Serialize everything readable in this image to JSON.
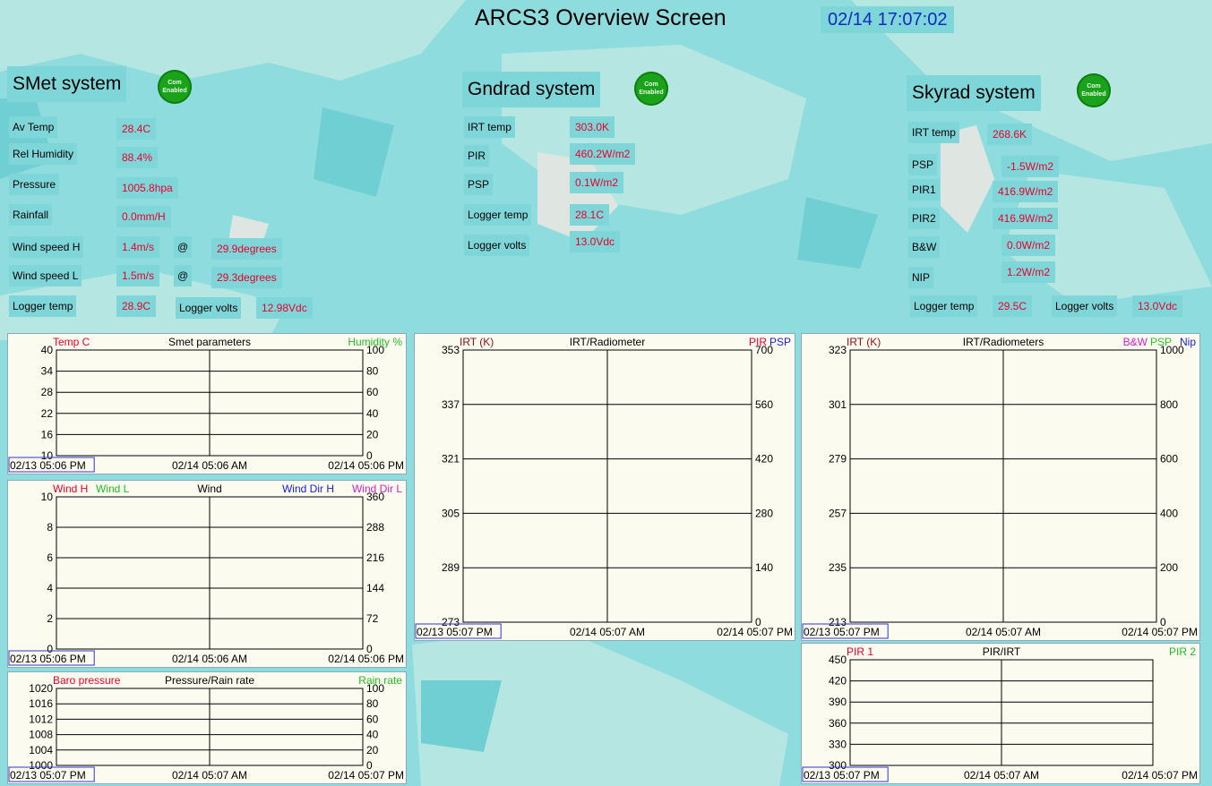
{
  "header": {
    "title": "ARCS3 Overview Screen",
    "datetime": "02/14 17:07:02"
  },
  "colors": {
    "background": "#8fdcde",
    "label_box": "#7fd6d9",
    "value_text": "#e8002a",
    "clock_text": "#1029c0",
    "com_badge": "#1aa31a"
  },
  "com_badge": {
    "line1": "Com",
    "line2": "Enabled",
    "icon": "com-enabled-icon"
  },
  "smet": {
    "title": "SMet system",
    "rows": [
      {
        "label": "Av Temp",
        "value": "28.4C"
      },
      {
        "label": "Rel Humidity",
        "value": "88.4%"
      },
      {
        "label": "Pressure",
        "value": "1005.8hpa"
      },
      {
        "label": "Rainfall",
        "value": "0.0mm/H"
      }
    ],
    "wind": [
      {
        "label": "Wind speed H",
        "value": "1.4m/s",
        "at": "@",
        "dir": "29.9degrees"
      },
      {
        "label": "Wind speed L",
        "value": "1.5m/s",
        "at": "@",
        "dir": "29.3degrees"
      }
    ],
    "logger_temp_label": "Logger temp",
    "logger_temp": "28.9C",
    "logger_volts_label": "Logger volts",
    "logger_volts": "12.98Vdc"
  },
  "gndrad": {
    "title": "Gndrad system",
    "rows": [
      {
        "label": "IRT temp",
        "value": "303.0K"
      },
      {
        "label": "PIR",
        "value": "460.2W/m2"
      },
      {
        "label": "PSP",
        "value": "0.1W/m2"
      },
      {
        "label": "Logger temp",
        "value": "28.1C"
      },
      {
        "label": "Logger volts",
        "value": "13.0Vdc"
      }
    ]
  },
  "skyrad": {
    "title": "Skyrad system",
    "rows": [
      {
        "label": "IRT temp",
        "value": "268.6K"
      },
      {
        "label": "PSP",
        "value": "-1.5W/m2"
      },
      {
        "label": "PIR1",
        "value": "416.9W/m2"
      },
      {
        "label": "PIR2",
        "value": "416.9W/m2"
      },
      {
        "label": "B&W",
        "value": "0.0W/m2"
      },
      {
        "label": "NIP",
        "value": "1.2W/m2"
      }
    ],
    "logger_temp_label": "Logger temp",
    "logger_temp": "29.5C",
    "logger_volts_label": "Logger volts",
    "logger_volts": "13.0Vdc"
  },
  "charts": [
    {
      "id": "smet",
      "title": "Smet parameters",
      "left_legend": [
        {
          "text": "Temp C",
          "color": "#e8002a"
        }
      ],
      "right_legend": [
        {
          "text": "Humidity %",
          "color": "#22bb22"
        }
      ],
      "y_left": [
        "40",
        "34",
        "28",
        "22",
        "16",
        "10"
      ],
      "y_right": [
        "100",
        "80",
        "60",
        "40",
        "20",
        "0"
      ],
      "x_labels": [
        "02/13 05:06 PM",
        "02/14 05:06 AM",
        "02/14 05:06 PM"
      ]
    },
    {
      "id": "wind",
      "title": "Wind",
      "left_legend": [
        {
          "text": "Wind H",
          "color": "#e8002a"
        },
        {
          "text": "Wind L",
          "color": "#22bb22"
        }
      ],
      "right_legend": [
        {
          "text": "Wind Dir H",
          "color": "#1a1ad8"
        },
        {
          "text": "Wind Dir L",
          "color": "#cc22cc"
        }
      ],
      "y_left": [
        "10",
        "8",
        "6",
        "4",
        "2",
        "0"
      ],
      "y_right": [
        "360",
        "288",
        "216",
        "144",
        "72",
        "0"
      ],
      "x_labels": [
        "02/13 05:06 PM",
        "02/14 05:06 AM",
        "02/14 05:06 PM"
      ]
    },
    {
      "id": "pressure",
      "title": "Pressure/Rain rate",
      "left_legend": [
        {
          "text": "Baro pressure",
          "color": "#e8002a"
        }
      ],
      "right_legend": [
        {
          "text": "Rain rate",
          "color": "#22bb22"
        }
      ],
      "y_left": [
        "1020",
        "1016",
        "1012",
        "1008",
        "1004",
        "1000"
      ],
      "y_right": [
        "100",
        "80",
        "60",
        "40",
        "20",
        "0"
      ],
      "x_labels": [
        "02/13 05:07 PM",
        "02/14 05:07 AM",
        "02/14 05:07 PM"
      ]
    },
    {
      "id": "gnd",
      "title": "IRT/Radiometer",
      "left_legend": [
        {
          "text": "IRT (K)",
          "color": "#8b1010"
        }
      ],
      "right_legend": [
        {
          "text": "PIR",
          "color": "#e8002a"
        },
        {
          "text": "PSP",
          "color": "#1a1ad8"
        }
      ],
      "y_left": [
        "353",
        "337",
        "321",
        "305",
        "289",
        "273"
      ],
      "y_right": [
        "700",
        "560",
        "420",
        "280",
        "140",
        "0"
      ],
      "x_labels": [
        "02/13 05:07 PM",
        "02/14 05:07 AM",
        "02/14 05:07 PM"
      ]
    },
    {
      "id": "sky",
      "title": "IRT/Radiometers",
      "left_legend": [
        {
          "text": "IRT (K)",
          "color": "#8b1010"
        }
      ],
      "right_legend": [
        {
          "text": "B&W",
          "color": "#cc22cc"
        },
        {
          "text": "PSP",
          "color": "#22cc22"
        },
        {
          "text": "Nip",
          "color": "#1a1ad8"
        }
      ],
      "y_left": [
        "323",
        "301",
        "279",
        "257",
        "235",
        "213"
      ],
      "y_right": [
        "1000",
        "800",
        "600",
        "400",
        "200",
        "0"
      ],
      "x_labels": [
        "02/13 05:07 PM",
        "02/14 05:07 AM",
        "02/14 05:07 PM"
      ]
    },
    {
      "id": "pir",
      "title": "PIR/IRT",
      "left_legend": [
        {
          "text": "PIR 1",
          "color": "#e8002a"
        }
      ],
      "right_legend": [
        {
          "text": "PIR 2",
          "color": "#22bb22"
        }
      ],
      "y_left": [
        "450",
        "420",
        "390",
        "360",
        "330",
        "300"
      ],
      "y_right": [],
      "x_labels": [
        "02/13 05:07 PM",
        "02/14 05:07 AM",
        "02/14 05:07 PM"
      ]
    }
  ]
}
